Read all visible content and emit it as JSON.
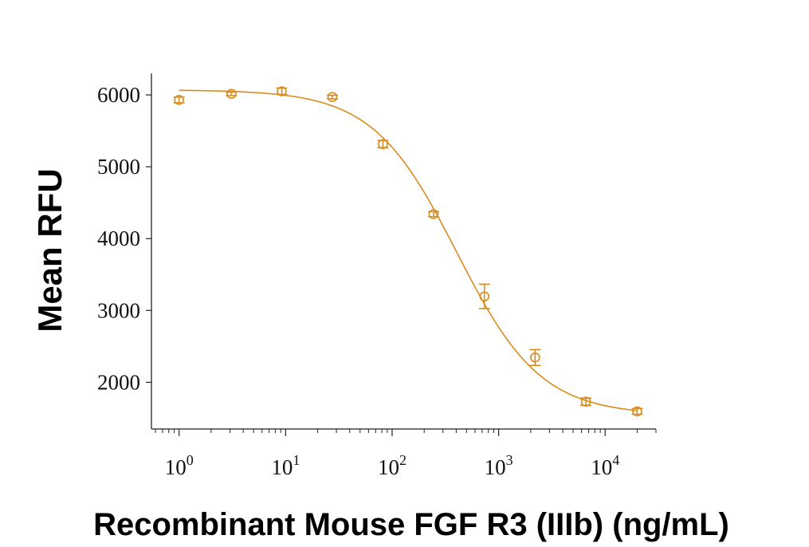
{
  "chart_data": {
    "type": "scatter",
    "xlabel": "Recombinant Mouse FGF R3 (IIIb) (ng/mL)",
    "ylabel": "Mean RFU",
    "x_scale": "log",
    "xlim": [
      0.55,
      30000
    ],
    "ylim": [
      1350,
      6300
    ],
    "x_ticks": [
      {
        "value": 1,
        "base": "10",
        "exp": "0"
      },
      {
        "value": 10,
        "base": "10",
        "exp": "1"
      },
      {
        "value": 100,
        "base": "10",
        "exp": "2"
      },
      {
        "value": 1000,
        "base": "10",
        "exp": "3"
      },
      {
        "value": 10000,
        "base": "10",
        "exp": "4"
      }
    ],
    "y_ticks": [
      {
        "value": 2000,
        "label": "2000"
      },
      {
        "value": 3000,
        "label": "3000"
      },
      {
        "value": 4000,
        "label": "4000"
      },
      {
        "value": 5000,
        "label": "5000"
      },
      {
        "value": 6000,
        "label": "6000"
      }
    ],
    "color": "#d98c1e",
    "series": [
      {
        "points": [
          {
            "x": 1,
            "y": 5930,
            "err": 40
          },
          {
            "x": 3.1,
            "y": 6015,
            "err": 25
          },
          {
            "x": 9.2,
            "y": 6050,
            "err": 45
          },
          {
            "x": 27.5,
            "y": 5970,
            "err": 25
          },
          {
            "x": 82,
            "y": 5315,
            "err": 50
          },
          {
            "x": 245,
            "y": 4340,
            "err": 35
          },
          {
            "x": 735,
            "y": 3195,
            "err": 170
          },
          {
            "x": 2200,
            "y": 2345,
            "err": 110
          },
          {
            "x": 6600,
            "y": 1730,
            "err": 50
          },
          {
            "x": 20000,
            "y": 1595,
            "err": 40
          }
        ],
        "fit": {
          "top": 6070,
          "bottom": 1545,
          "ec50": 405,
          "hill": 1.1
        }
      }
    ]
  }
}
